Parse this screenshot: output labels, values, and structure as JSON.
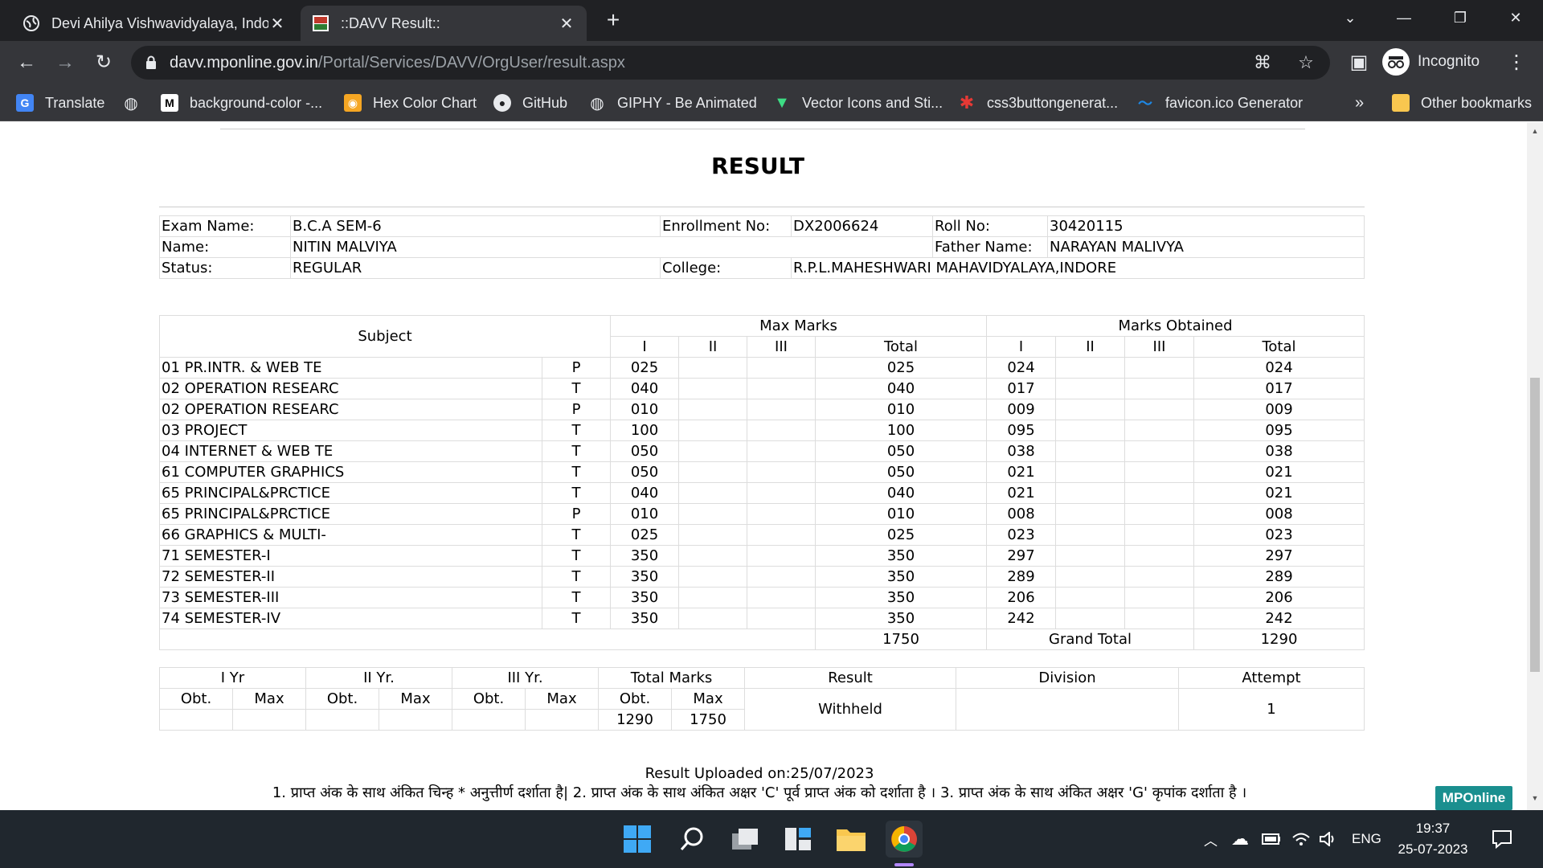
{
  "browser": {
    "tabs": [
      {
        "title": "Devi Ahilya Vishwavidyalaya, Indore",
        "active": false
      },
      {
        "title": "::DAVV Result::",
        "active": true
      }
    ],
    "url_host": "davv.mponline.gov.in",
    "url_path": "/Portal/Services/DAVV/OrgUser/result.aspx",
    "profile_label": "Incognito",
    "bookmarks": [
      "Translate",
      "",
      "background-color -...",
      "Hex Color Chart",
      "GitHub",
      "GIPHY - Be Animated",
      "Vector Icons and Sti...",
      "css3buttongenerat...",
      "favicon.ico Generator"
    ],
    "bookmarks_overflow": "»",
    "other_bookmarks": "Other bookmarks"
  },
  "page": {
    "title": "RESULT",
    "info": {
      "exam_label": "Exam Name:",
      "exam_value": "B.C.A SEM-6",
      "enroll_label": "Enrollment No:",
      "enroll_value": "DX2006624",
      "roll_label": "Roll No:",
      "roll_value": "30420115",
      "name_label": "Name:",
      "name_value": "NITIN MALVIYA",
      "father_label": "Father Name:",
      "father_value": "NARAYAN MALIVYA",
      "status_label": "Status:",
      "status_value": "REGULAR",
      "college_label": "College:",
      "college_value": "R.P.L.MAHESHWARI MAHAVIDYALAYA,INDORE"
    },
    "marks": {
      "subject_header": "Subject",
      "max_header": "Max Marks",
      "obt_header": "Marks Obtained",
      "sub_headers": [
        "I",
        "II",
        "III",
        "Total"
      ],
      "rows": [
        {
          "subject": "01 PR.INTR. & WEB TE",
          "type": "P",
          "max": "025",
          "max_total": "025",
          "obt": "024",
          "obt_total": "024"
        },
        {
          "subject": "02 OPERATION RESEARC",
          "type": "T",
          "max": "040",
          "max_total": "040",
          "obt": "017",
          "obt_total": "017"
        },
        {
          "subject": "02 OPERATION RESEARC",
          "type": "P",
          "max": "010",
          "max_total": "010",
          "obt": "009",
          "obt_total": "009"
        },
        {
          "subject": "03 PROJECT",
          "type": "T",
          "max": "100",
          "max_total": "100",
          "obt": "095",
          "obt_total": "095"
        },
        {
          "subject": "04 INTERNET & WEB TE",
          "type": "T",
          "max": "050",
          "max_total": "050",
          "obt": "038",
          "obt_total": "038"
        },
        {
          "subject": "61 COMPUTER GRAPHICS",
          "type": "T",
          "max": "050",
          "max_total": "050",
          "obt": "021",
          "obt_total": "021"
        },
        {
          "subject": "65 PRINCIPAL&PRCTICE",
          "type": "T",
          "max": "040",
          "max_total": "040",
          "obt": "021",
          "obt_total": "021"
        },
        {
          "subject": "65 PRINCIPAL&PRCTICE",
          "type": "P",
          "max": "010",
          "max_total": "010",
          "obt": "008",
          "obt_total": "008"
        },
        {
          "subject": "66 GRAPHICS & MULTI-",
          "type": "T",
          "max": "025",
          "max_total": "025",
          "obt": "023",
          "obt_total": "023"
        },
        {
          "subject": "71 SEMESTER-I",
          "type": "T",
          "max": "350",
          "max_total": "350",
          "obt": "297",
          "obt_total": "297"
        },
        {
          "subject": "72 SEMESTER-II",
          "type": "T",
          "max": "350",
          "max_total": "350",
          "obt": "289",
          "obt_total": "289"
        },
        {
          "subject": "73 SEMESTER-III",
          "type": "T",
          "max": "350",
          "max_total": "350",
          "obt": "206",
          "obt_total": "206"
        },
        {
          "subject": "74 SEMESTER-IV",
          "type": "T",
          "max": "350",
          "max_total": "350",
          "obt": "242",
          "obt_total": "242"
        }
      ],
      "max_grand_total": "1750",
      "grand_total_label": "Grand Total",
      "obt_grand_total": "1290"
    },
    "summary": {
      "yr1": "I Yr",
      "yr2": "II Yr.",
      "yr3": "III Yr.",
      "total_marks": "Total Marks",
      "result_label": "Result",
      "division_label": "Division",
      "attempt_label": "Attempt",
      "obt": "Obt.",
      "max": "Max",
      "total_obt": "1290",
      "total_max": "1750",
      "result_value": "Withheld",
      "division_value": "",
      "attempt_value": "1"
    },
    "uploaded": "Result Uploaded on:25/07/2023",
    "note": "1. प्राप्त अंक के साथ अंकित चिन्ह * अनुत्तीर्ण दर्शाता है| 2. प्राप्त अंक के साथ अंकित अक्षर 'C' पूर्व प्राप्त अंक को दर्शाता है । 3. प्राप्त अंक के साथ अंकित अक्षर 'G' कृपांक दर्शाता है ।",
    "badge": "MPOnline"
  },
  "taskbar": {
    "lang": "ENG",
    "time": "19:37",
    "date": "25-07-2023"
  }
}
